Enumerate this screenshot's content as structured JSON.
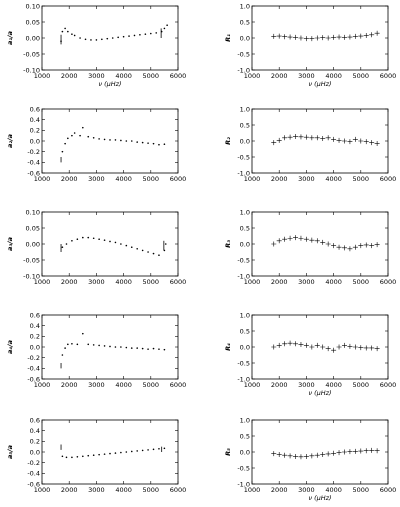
{
  "chart_data": [
    {
      "id": "a1",
      "type": "scatter",
      "ylabel": "a₁/a",
      "xlabel": "ν (μHz)",
      "xlim": [
        1000,
        6000
      ],
      "ylim": [
        -0.1,
        0.1
      ],
      "xticks": [
        "1000",
        "2000",
        "3000",
        "4000",
        "5000",
        "6000"
      ],
      "yticks": [
        "-0.10",
        "-0.05",
        "0.00",
        "0.05",
        "0.10"
      ],
      "yvals": [
        -0.1,
        -0.05,
        0.0,
        0.05,
        0.1
      ],
      "points": [
        [
          1700,
          -0.01
        ],
        [
          1750,
          0.02
        ],
        [
          1850,
          0.03
        ],
        [
          1950,
          0.02
        ],
        [
          2100,
          0.012
        ],
        [
          2200,
          0.008
        ],
        [
          2400,
          0.0
        ],
        [
          2600,
          -0.004
        ],
        [
          2800,
          -0.006
        ],
        [
          3000,
          -0.006
        ],
        [
          3200,
          -0.004
        ],
        [
          3400,
          -0.002
        ],
        [
          3600,
          0.0
        ],
        [
          3800,
          0.002
        ],
        [
          4000,
          0.004
        ],
        [
          4200,
          0.006
        ],
        [
          4400,
          0.008
        ],
        [
          4600,
          0.01
        ],
        [
          4800,
          0.012
        ],
        [
          5000,
          0.014
        ],
        [
          5200,
          0.016
        ],
        [
          5400,
          0.02
        ],
        [
          5500,
          0.03
        ],
        [
          5600,
          0.04
        ]
      ],
      "bars": [
        [
          1700,
          -0.02,
          0.01
        ],
        [
          5380,
          0.0,
          0.03
        ]
      ]
    },
    {
      "id": "R1",
      "type": "scatter",
      "ylabel": "R₁",
      "xlabel": "ν (μHz)",
      "xlim": [
        1000,
        6000
      ],
      "ylim": [
        -1.0,
        1.0
      ],
      "xticks": [
        "1000",
        "2000",
        "3000",
        "4000",
        "5000",
        "6000"
      ],
      "yticks": [
        "-1.0",
        "-0.5",
        "0.0",
        "0.5",
        "1.0"
      ],
      "yvals": [
        -1.0,
        -0.5,
        0.0,
        0.5,
        1.0
      ],
      "points": [
        [
          1800,
          0.05
        ],
        [
          2000,
          0.06
        ],
        [
          2200,
          0.04
        ],
        [
          2400,
          0.03
        ],
        [
          2600,
          0.02
        ],
        [
          2800,
          0.0
        ],
        [
          3000,
          -0.02
        ],
        [
          3200,
          -0.02
        ],
        [
          3400,
          0.0
        ],
        [
          3600,
          0.01
        ],
        [
          3800,
          0.0
        ],
        [
          4000,
          0.02
        ],
        [
          4200,
          0.03
        ],
        [
          4400,
          0.02
        ],
        [
          4600,
          0.03
        ],
        [
          4800,
          0.05
        ],
        [
          5000,
          0.06
        ],
        [
          5200,
          0.08
        ],
        [
          5400,
          0.1
        ],
        [
          5600,
          0.15
        ]
      ]
    },
    {
      "id": "a2",
      "type": "scatter",
      "ylabel": "a₂/a",
      "xlabel": "",
      "xlim": [
        1000,
        6000
      ],
      "ylim": [
        -0.6,
        0.6
      ],
      "xticks": [
        "1000",
        "2000",
        "3000",
        "4000",
        "5000",
        "6000"
      ],
      "yticks": [
        "-0.6",
        "-0.4",
        "-0.2",
        "0.0",
        "0.2",
        "0.4",
        "0.6"
      ],
      "yvals": [
        -0.6,
        -0.4,
        -0.2,
        0.0,
        0.2,
        0.4,
        0.6
      ],
      "points": [
        [
          1750,
          -0.2
        ],
        [
          1850,
          -0.05
        ],
        [
          1950,
          0.05
        ],
        [
          2100,
          0.1
        ],
        [
          2200,
          0.15
        ],
        [
          2400,
          0.1
        ],
        [
          2500,
          0.25
        ],
        [
          2700,
          0.08
        ],
        [
          2900,
          0.06
        ],
        [
          3100,
          0.04
        ],
        [
          3300,
          0.03
        ],
        [
          3500,
          0.02
        ],
        [
          3700,
          0.02
        ],
        [
          3900,
          0.01
        ],
        [
          4100,
          0.0
        ],
        [
          4300,
          0.0
        ],
        [
          4500,
          -0.02
        ],
        [
          4700,
          -0.03
        ],
        [
          4900,
          -0.04
        ],
        [
          5100,
          -0.05
        ],
        [
          5300,
          -0.07
        ],
        [
          5500,
          -0.06
        ]
      ],
      "bars": [
        [
          1700,
          -0.4,
          -0.3
        ]
      ]
    },
    {
      "id": "R2",
      "type": "scatter",
      "ylabel": "R₂",
      "xlabel": "",
      "xlim": [
        1000,
        6000
      ],
      "ylim": [
        -1.0,
        1.0
      ],
      "xticks": [
        "1000",
        "2000",
        "3000",
        "4000",
        "5000",
        "6000"
      ],
      "yticks": [
        "-1.0",
        "-0.5",
        "0.0",
        "0.5",
        "1.0"
      ],
      "yvals": [
        -1.0,
        -0.5,
        0.0,
        0.5,
        1.0
      ],
      "points": [
        [
          1800,
          -0.05
        ],
        [
          2000,
          0.02
        ],
        [
          2200,
          0.1
        ],
        [
          2400,
          0.12
        ],
        [
          2600,
          0.14
        ],
        [
          2800,
          0.13
        ],
        [
          3000,
          0.12
        ],
        [
          3200,
          0.1
        ],
        [
          3400,
          0.1
        ],
        [
          3600,
          0.08
        ],
        [
          3800,
          0.1
        ],
        [
          4000,
          0.05
        ],
        [
          4200,
          0.02
        ],
        [
          4400,
          0.0
        ],
        [
          4600,
          -0.02
        ],
        [
          4800,
          0.05
        ],
        [
          5000,
          0.0
        ],
        [
          5200,
          -0.02
        ],
        [
          5400,
          -0.05
        ],
        [
          5600,
          -0.08
        ]
      ]
    },
    {
      "id": "a3",
      "type": "scatter",
      "ylabel": "a₃/a",
      "xlabel": "",
      "xlim": [
        1000,
        6000
      ],
      "ylim": [
        -0.1,
        0.1
      ],
      "xticks": [
        "1000",
        "2000",
        "3000",
        "4000",
        "5000",
        "6000"
      ],
      "yticks": [
        "-0.10",
        "-0.05",
        "0.00",
        "0.05",
        "0.10"
      ],
      "yvals": [
        -0.1,
        -0.05,
        0.0,
        0.05,
        0.1
      ],
      "points": [
        [
          1750,
          -0.01
        ],
        [
          1900,
          0.0
        ],
        [
          2100,
          0.01
        ],
        [
          2300,
          0.015
        ],
        [
          2500,
          0.02
        ],
        [
          2700,
          0.02
        ],
        [
          2900,
          0.018
        ],
        [
          3100,
          0.015
        ],
        [
          3300,
          0.012
        ],
        [
          3500,
          0.008
        ],
        [
          3700,
          0.005
        ],
        [
          3900,
          0.0
        ],
        [
          4100,
          -0.005
        ],
        [
          4300,
          -0.01
        ],
        [
          4500,
          -0.015
        ],
        [
          4700,
          -0.02
        ],
        [
          4900,
          -0.025
        ],
        [
          5100,
          -0.03
        ],
        [
          5300,
          -0.035
        ],
        [
          5500,
          -0.02
        ],
        [
          5550,
          0.0
        ]
      ],
      "bars": [
        [
          1700,
          -0.025,
          0.0
        ],
        [
          5480,
          -0.02,
          0.01
        ]
      ]
    },
    {
      "id": "R3",
      "type": "scatter",
      "ylabel": "R₃",
      "xlabel": "",
      "xlim": [
        1000,
        6000
      ],
      "ylim": [
        -1.0,
        1.0
      ],
      "xticks": [
        "1000",
        "2000",
        "3000",
        "4000",
        "5000",
        "6000"
      ],
      "yticks": [
        "-1.0",
        "-0.5",
        "0.0",
        "0.5",
        "1.0"
      ],
      "yvals": [
        -1.0,
        -0.5,
        0.0,
        0.5,
        1.0
      ],
      "points": [
        [
          1800,
          0.0
        ],
        [
          2000,
          0.1
        ],
        [
          2200,
          0.15
        ],
        [
          2400,
          0.18
        ],
        [
          2600,
          0.2
        ],
        [
          2800,
          0.18
        ],
        [
          3000,
          0.15
        ],
        [
          3200,
          0.12
        ],
        [
          3400,
          0.1
        ],
        [
          3600,
          0.05
        ],
        [
          3800,
          0.0
        ],
        [
          4000,
          -0.05
        ],
        [
          4200,
          -0.1
        ],
        [
          4400,
          -0.12
        ],
        [
          4600,
          -0.15
        ],
        [
          4800,
          -0.1
        ],
        [
          5000,
          -0.05
        ],
        [
          5200,
          -0.03
        ],
        [
          5400,
          -0.05
        ],
        [
          5600,
          -0.02
        ]
      ]
    },
    {
      "id": "a4",
      "type": "scatter",
      "ylabel": "a₄/a",
      "xlabel": "",
      "xlim": [
        1000,
        6000
      ],
      "ylim": [
        -0.6,
        0.6
      ],
      "xticks": [
        "1000",
        "2000",
        "3000",
        "4000",
        "5000",
        "6000"
      ],
      "yticks": [
        "-0.6",
        "-0.4",
        "-0.2",
        "0.0",
        "0.2",
        "0.4",
        "0.6"
      ],
      "yvals": [
        -0.6,
        -0.4,
        -0.2,
        0.0,
        0.2,
        0.4,
        0.6
      ],
      "points": [
        [
          1750,
          -0.15
        ],
        [
          1850,
          -0.02
        ],
        [
          1950,
          0.05
        ],
        [
          2100,
          0.06
        ],
        [
          2300,
          0.05
        ],
        [
          2500,
          0.25
        ],
        [
          2700,
          0.05
        ],
        [
          2900,
          0.04
        ],
        [
          3100,
          0.03
        ],
        [
          3300,
          0.02
        ],
        [
          3500,
          0.01
        ],
        [
          3700,
          0.0
        ],
        [
          3900,
          0.0
        ],
        [
          4100,
          -0.01
        ],
        [
          4300,
          -0.02
        ],
        [
          4500,
          -0.02
        ],
        [
          4700,
          -0.03
        ],
        [
          4900,
          -0.04
        ],
        [
          5100,
          -0.03
        ],
        [
          5300,
          -0.04
        ],
        [
          5500,
          -0.05
        ]
      ],
      "bars": [
        [
          1700,
          -0.4,
          -0.3
        ]
      ]
    },
    {
      "id": "R4",
      "type": "scatter",
      "ylabel": "R₄",
      "xlabel": "ν (μHz)",
      "xlim": [
        1000,
        6000
      ],
      "ylim": [
        -1.0,
        1.0
      ],
      "xticks": [
        "1000",
        "2000",
        "3000",
        "4000",
        "5000",
        "6000"
      ],
      "yticks": [
        "-1.0",
        "-0.5",
        "0.0",
        "0.5",
        "1.0"
      ],
      "yvals": [
        -1.0,
        -0.5,
        0.0,
        0.5,
        1.0
      ],
      "points": [
        [
          1800,
          0.0
        ],
        [
          2000,
          0.05
        ],
        [
          2200,
          0.1
        ],
        [
          2400,
          0.12
        ],
        [
          2600,
          0.1
        ],
        [
          2800,
          0.08
        ],
        [
          3000,
          0.05
        ],
        [
          3200,
          0.0
        ],
        [
          3400,
          0.05
        ],
        [
          3600,
          0.0
        ],
        [
          3800,
          -0.05
        ],
        [
          4000,
          -0.1
        ],
        [
          4200,
          0.0
        ],
        [
          4400,
          0.05
        ],
        [
          4600,
          0.02
        ],
        [
          4800,
          0.0
        ],
        [
          5000,
          -0.02
        ],
        [
          5200,
          -0.03
        ],
        [
          5400,
          -0.03
        ],
        [
          5600,
          -0.05
        ]
      ]
    },
    {
      "id": "a5",
      "type": "scatter",
      "ylabel": "a₅/a",
      "xlabel": "",
      "xlim": [
        1000,
        6000
      ],
      "ylim": [
        -0.6,
        0.6
      ],
      "xticks": [
        "1000",
        "2000",
        "3000",
        "4000",
        "5000",
        "6000"
      ],
      "yticks": [
        "-0.6",
        "-0.4",
        "-0.2",
        "0.0",
        "0.2",
        "0.4",
        "0.6"
      ],
      "yvals": [
        -0.6,
        -0.4,
        -0.2,
        0.0,
        0.2,
        0.4,
        0.6
      ],
      "points": [
        [
          1750,
          -0.08
        ],
        [
          1900,
          -0.1
        ],
        [
          2100,
          -0.1
        ],
        [
          2300,
          -0.09
        ],
        [
          2500,
          -0.08
        ],
        [
          2700,
          -0.07
        ],
        [
          2900,
          -0.06
        ],
        [
          3100,
          -0.05
        ],
        [
          3300,
          -0.04
        ],
        [
          3500,
          -0.03
        ],
        [
          3700,
          -0.02
        ],
        [
          3900,
          -0.01
        ],
        [
          4100,
          0.0
        ],
        [
          4300,
          0.01
        ],
        [
          4500,
          0.02
        ],
        [
          4700,
          0.03
        ],
        [
          4900,
          0.04
        ],
        [
          5100,
          0.05
        ],
        [
          5300,
          0.06
        ],
        [
          5500,
          0.07
        ]
      ],
      "bars": [
        [
          1700,
          0.04,
          0.14
        ],
        [
          5400,
          0.0,
          0.1
        ]
      ]
    },
    {
      "id": "R5",
      "type": "scatter",
      "ylabel": "R₅",
      "xlabel": "ν (μHz)",
      "xlim": [
        1000,
        6000
      ],
      "ylim": [
        -1.0,
        1.0
      ],
      "xticks": [
        "1000",
        "2000",
        "3000",
        "4000",
        "5000",
        "6000"
      ],
      "yticks": [
        "-1.0",
        "-0.5",
        "0.0",
        "0.5",
        "1.0"
      ],
      "yvals": [
        -1.0,
        -0.5,
        0.0,
        0.5,
        1.0
      ],
      "points": [
        [
          1800,
          -0.05
        ],
        [
          2000,
          -0.08
        ],
        [
          2200,
          -0.1
        ],
        [
          2400,
          -0.12
        ],
        [
          2600,
          -0.14
        ],
        [
          2800,
          -0.15
        ],
        [
          3000,
          -0.14
        ],
        [
          3200,
          -0.12
        ],
        [
          3400,
          -0.1
        ],
        [
          3600,
          -0.08
        ],
        [
          3800,
          -0.06
        ],
        [
          4000,
          -0.04
        ],
        [
          4200,
          -0.02
        ],
        [
          4400,
          0.0
        ],
        [
          4600,
          0.01
        ],
        [
          4800,
          0.02
        ],
        [
          5000,
          0.03
        ],
        [
          5200,
          0.04
        ],
        [
          5400,
          0.05
        ],
        [
          5600,
          0.04
        ]
      ]
    }
  ]
}
